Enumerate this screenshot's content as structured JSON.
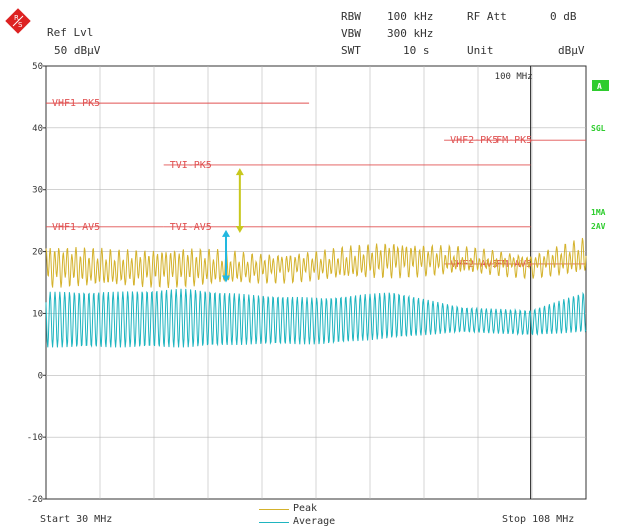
{
  "header": {
    "ref_lvl_label": "Ref Lvl",
    "ref_lvl_value": "50 dBµV",
    "rbw_label": "RBW",
    "rbw_value": "100 kHz",
    "vbw_label": "VBW",
    "vbw_value": "300 kHz",
    "swt_label": "SWT",
    "swt_value": "10 s",
    "rf_att_label": "RF Att",
    "rf_att_value": "0 dB",
    "unit_label": "Unit",
    "unit_value": "dBµV"
  },
  "marker_label": "100 MHz",
  "side_labels": {
    "a": "A",
    "sgl": "SGL",
    "trace1": "1MA",
    "trace2": "2AV"
  },
  "footer": {
    "start": "Start 30 MHz",
    "stop": "Stop 108 MHz"
  },
  "legend": {
    "peak": "Peak",
    "average": "Average"
  },
  "colors": {
    "peak": "#d4b22c",
    "average": "#1fb5c0",
    "limit": "#e05050",
    "arrow_peak": "#c8c81e",
    "arrow_avg": "#22b8e0",
    "side": "#2ecc2e"
  },
  "chart_data": {
    "type": "line",
    "ylim": [
      -20,
      50
    ],
    "yticks": [
      50,
      40,
      30,
      20,
      10,
      0,
      -10,
      -20
    ],
    "xlim": [
      30,
      108
    ],
    "grid": true,
    "marker_x": 100,
    "limit_lines": [
      {
        "label": "VHF1-PK5",
        "x_start": 30,
        "x_end": 68,
        "y": 44
      },
      {
        "label": "VHF1-AV5",
        "x_start": 30,
        "x_end": 47,
        "y": 24
      },
      {
        "label": "TVI-PK5",
        "x_start": 47,
        "x_end": 100,
        "y": 34
      },
      {
        "label": "TVI-AV5",
        "x_start": 47,
        "x_end": 100,
        "y": 24
      },
      {
        "label": "VHF2-PK5",
        "x_start": 87.5,
        "x_end": 108,
        "y": 38
      },
      {
        "label": "FM-PK5",
        "x_start": 87.5,
        "x_end": 108,
        "y": 38
      },
      {
        "label": "VHF2-AV5",
        "x_start": 87.5,
        "x_end": 108,
        "y": 18
      },
      {
        "label": "FM-AV5",
        "x_start": 87.5,
        "x_end": 108,
        "y": 18
      }
    ],
    "series": [
      {
        "name": "Peak",
        "envelope_x": [
          30,
          40,
          50,
          60,
          70,
          80,
          90,
          100,
          108
        ],
        "upper": [
          20.5,
          19.5,
          20,
          19,
          19.5,
          21,
          20,
          19,
          21.5
        ],
        "lower": [
          15,
          15,
          15,
          15.5,
          16,
          16.5,
          17,
          16.5,
          17
        ]
      },
      {
        "name": "Average",
        "envelope_x": [
          30,
          40,
          50,
          60,
          70,
          80,
          90,
          100,
          108
        ],
        "upper": [
          13.5,
          13.5,
          14,
          13,
          12.5,
          13.5,
          11,
          10.5,
          13.5
        ],
        "lower": [
          4.5,
          4.5,
          4.5,
          5,
          5,
          6,
          7,
          6.5,
          7
        ]
      }
    ],
    "arrows": [
      {
        "x": 58,
        "y_from": 23,
        "y_to": 33.5
      },
      {
        "x": 56,
        "y_from": 15,
        "y_to": 23.5
      }
    ]
  }
}
